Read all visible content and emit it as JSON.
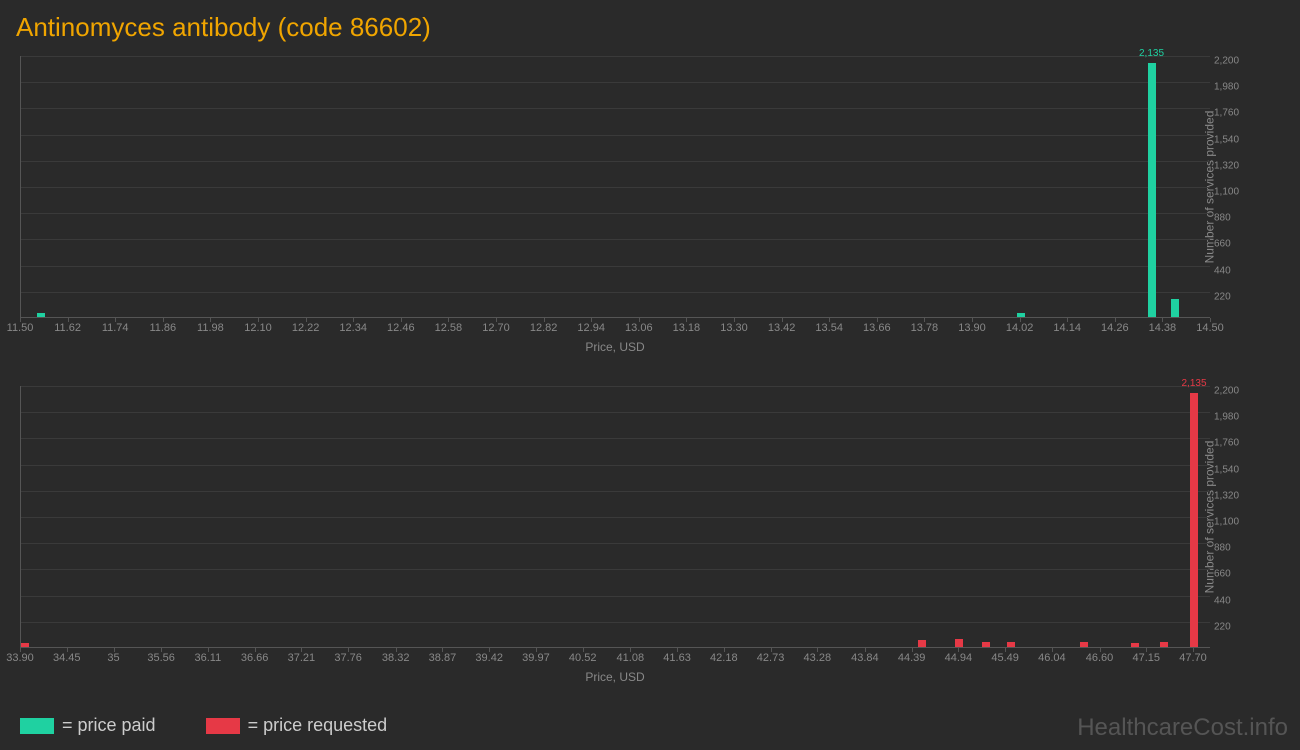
{
  "title": "Antinomyces antibody (code 86602)",
  "watermark": "HealthcareCost.info",
  "ylabel": "Number of services provided",
  "xlabel": "Price, USD",
  "ymax": 2200,
  "ytick_step": 220,
  "yticks": [
    "220",
    "440",
    "660",
    "880",
    "1,100",
    "1,320",
    "1,540",
    "1,760",
    "1,980",
    "2,200"
  ],
  "grid_color": "#3a3a3a",
  "axis_color": "#555555",
  "background_color": "#2a2a2a",
  "text_color": "#888888",
  "title_color": "#f0a500",
  "chart_top": {
    "color": "#1fd1a1",
    "xmin": 11.5,
    "xmax": 14.5,
    "xticks": [
      "11.50",
      "11.62",
      "11.74",
      "11.86",
      "11.98",
      "12.10",
      "12.22",
      "12.34",
      "12.46",
      "12.58",
      "12.70",
      "12.82",
      "12.94",
      "13.06",
      "13.18",
      "13.30",
      "13.42",
      "13.54",
      "13.66",
      "13.78",
      "13.90",
      "14.02",
      "14.14",
      "14.26",
      "14.38",
      "14.50"
    ],
    "bars": [
      {
        "x": 11.55,
        "y": 30,
        "label": null
      },
      {
        "x": 14.02,
        "y": 30,
        "label": null
      },
      {
        "x": 14.35,
        "y": 2135,
        "label": "2,135"
      },
      {
        "x": 14.41,
        "y": 150,
        "label": null
      }
    ]
  },
  "chart_bottom": {
    "color": "#e63946",
    "xmin": 33.9,
    "xmax": 47.9,
    "xticks": [
      "33.90",
      "34.45",
      "35",
      "35.56",
      "36.11",
      "36.66",
      "37.21",
      "37.76",
      "38.32",
      "38.87",
      "39.42",
      "39.97",
      "40.52",
      "41.08",
      "41.63",
      "42.18",
      "42.73",
      "43.28",
      "43.84",
      "44.39",
      "44.94",
      "45.49",
      "46.04",
      "46.60",
      "47.15",
      "47.70"
    ],
    "bars": [
      {
        "x": 33.95,
        "y": 35,
        "label": null
      },
      {
        "x": 44.5,
        "y": 60,
        "label": null
      },
      {
        "x": 44.94,
        "y": 70,
        "label": null
      },
      {
        "x": 45.25,
        "y": 45,
        "label": null
      },
      {
        "x": 45.55,
        "y": 45,
        "label": null
      },
      {
        "x": 46.4,
        "y": 40,
        "label": null
      },
      {
        "x": 47.0,
        "y": 35,
        "label": null
      },
      {
        "x": 47.35,
        "y": 40,
        "label": null
      },
      {
        "x": 47.7,
        "y": 2135,
        "label": "2,135"
      }
    ]
  },
  "legend": [
    {
      "color": "#1fd1a1",
      "label": "= price paid"
    },
    {
      "color": "#e63946",
      "label": "= price requested"
    }
  ]
}
